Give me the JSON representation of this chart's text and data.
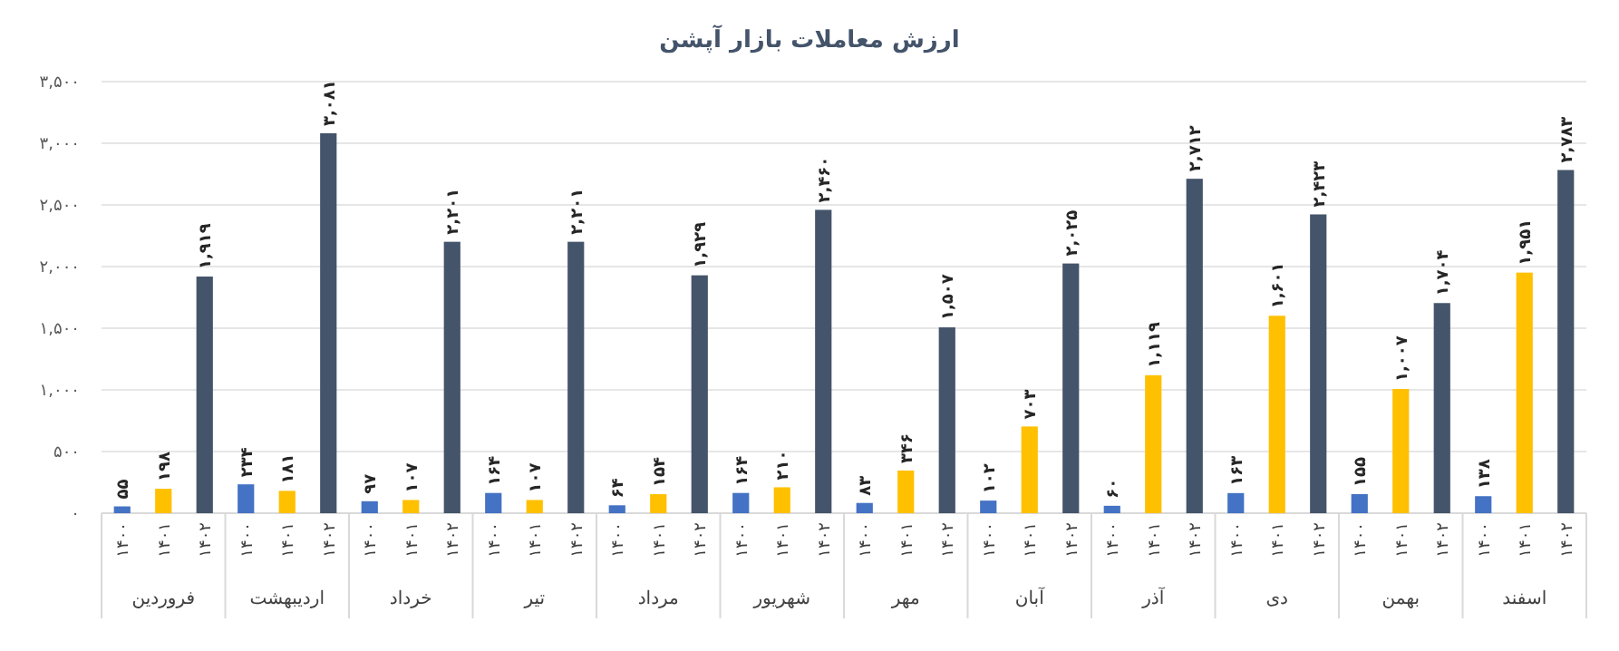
{
  "chart_data": {
    "type": "bar",
    "title": "ارزش معاملات بازار آپشن",
    "categories": [
      "فروردین",
      "اردیبهشت",
      "خرداد",
      "تیر",
      "مرداد",
      "شهریور",
      "مهر",
      "آبان",
      "آذر",
      "دی",
      "بهمن",
      "اسفند"
    ],
    "series": [
      {
        "name": "۱۴۰۰",
        "color": "#4472c4",
        "values": [
          55,
          234,
          97,
          164,
          64,
          164,
          83,
          102,
          60,
          163,
          155,
          138
        ],
        "value_labels": [
          "۵۵",
          "۲۳۴",
          "۹۷",
          "۱۶۴",
          "۶۴",
          "۱۶۴",
          "۸۳",
          "۱۰۲",
          "۶۰",
          "۱۶۳",
          "۱۵۵",
          "۱۳۸"
        ]
      },
      {
        "name": "۱۴۰۱",
        "color": "#ffc000",
        "values": [
          198,
          181,
          107,
          107,
          154,
          210,
          346,
          703,
          1119,
          1601,
          1007,
          1951
        ],
        "value_labels": [
          "۱۹۸",
          "۱۸۱",
          "۱۰۷",
          "۱۰۷",
          "۱۵۴",
          "۲۱۰",
          "۳۴۶",
          "۷۰۳",
          "۱,۱۱۹",
          "۱,۶۰۱",
          "۱,۰۰۷",
          "۱,۹۵۱"
        ]
      },
      {
        "name": "۱۴۰۲",
        "color": "#44546a",
        "values": [
          1919,
          3081,
          2201,
          2201,
          1929,
          2460,
          1507,
          2025,
          2712,
          2423,
          1704,
          2783
        ],
        "value_labels": [
          "۱,۹۱۹",
          "۳,۰۸۱",
          "۲,۲۰۱",
          "۲,۲۰۱",
          "۱,۹۲۹",
          "۲,۴۶۰",
          "۱,۵۰۷",
          "۲,۰۲۵",
          "۲,۷۱۲",
          "۲,۴۲۳",
          "۱,۷۰۴",
          "۲,۷۸۳"
        ]
      }
    ],
    "ylim": [
      0,
      3500
    ],
    "yticks": [
      {
        "value": 0,
        "label": "۰"
      },
      {
        "value": 500,
        "label": "۵۰۰"
      },
      {
        "value": 1000,
        "label": "۱,۰۰۰"
      },
      {
        "value": 1500,
        "label": "۱,۵۰۰"
      },
      {
        "value": 2000,
        "label": "۲,۰۰۰"
      },
      {
        "value": 2500,
        "label": "۲,۵۰۰"
      },
      {
        "value": 3000,
        "label": "۳,۰۰۰"
      },
      {
        "value": 3500,
        "label": "۳,۵۰۰"
      }
    ],
    "grid": "y"
  }
}
